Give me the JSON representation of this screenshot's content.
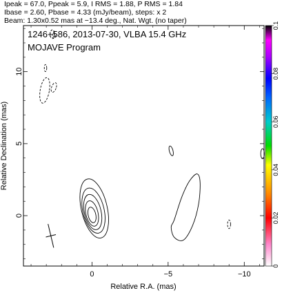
{
  "header": {
    "line1": "Ipeak = 67.0, Ppeak = 5.9, I RMS = 1.88, P RMS = 1.84",
    "line2": "Ibase = 2.60, Pbase = 4.33 (mJy/beam), steps: x 2",
    "line3": "Beam: 1.30x0.52 mas at −13.4 deg., Nat. Wgt. (no taper)"
  },
  "panel": {
    "title": "1246+586, 2013-07-30, VLBA 15.4 GHz",
    "subtitle": "MOJAVE Program"
  },
  "colorbar": {
    "ticks": [
      "0",
      "0.02",
      "0.04",
      "0.06",
      "0.08",
      "0.1"
    ],
    "range": [
      0,
      0.1
    ],
    "colors": [
      "#ffffff",
      "#ff88cc",
      "#ff0000",
      "#ff8800",
      "#ffff00",
      "#00dd00",
      "#00cccc",
      "#0066ff",
      "#0000ff",
      "#aa00ff",
      "#ff00ff",
      "#000000"
    ]
  },
  "chart_data": {
    "type": "contour",
    "xlabel": "Relative R.A. (mas)",
    "ylabel": "Relative Declination (mas)",
    "xlim": [
      4.5,
      -11.3
    ],
    "ylim": [
      -3.5,
      13.2
    ],
    "x_ticks": [
      "0",
      "−5",
      "−10"
    ],
    "x_tick_values": [
      0,
      -5,
      -10
    ],
    "y_ticks": [
      "0",
      "5",
      "10"
    ],
    "y_tick_values": [
      0,
      5,
      10
    ],
    "core_contours": [
      {
        "cx": 0.0,
        "cy": 0.05,
        "rx": 0.25,
        "ry": 0.55,
        "angle": -13
      },
      {
        "cx": 0.0,
        "cy": 0.15,
        "rx": 0.4,
        "ry": 0.9,
        "angle": -13
      },
      {
        "cx": -0.05,
        "cy": 0.25,
        "rx": 0.55,
        "ry": 1.25,
        "angle": -13
      },
      {
        "cx": -0.1,
        "cy": 0.35,
        "rx": 0.7,
        "ry": 1.6,
        "angle": -13
      },
      {
        "cx": -0.15,
        "cy": 0.5,
        "rx": 0.85,
        "ry": 2.1,
        "angle": -13
      }
    ],
    "jet_component": [
      [
        -5.4,
        -0.3
      ],
      [
        -5.9,
        1.3
      ],
      [
        -6.4,
        2.4
      ],
      [
        -6.9,
        2.9
      ],
      [
        -7.1,
        2.3
      ],
      [
        -7.0,
        0.8
      ],
      [
        -6.6,
        -0.7
      ],
      [
        -6.0,
        -1.7
      ],
      [
        -5.4,
        -1.5
      ],
      [
        -5.2,
        -0.8
      ]
    ],
    "small_blob": {
      "cx": -5.2,
      "cy": 4.5,
      "rx": 0.12,
      "ry": 0.35,
      "angle": -15
    },
    "right_edge_blob": {
      "cx": -11.2,
      "cy": 4.3,
      "rx": 0.12,
      "ry": 0.35
    },
    "negative_contours": [
      {
        "cx": 3.1,
        "cy": 8.7,
        "rx": 0.3,
        "ry": 0.9,
        "angle": 10
      },
      {
        "cx": 2.5,
        "cy": 8.9,
        "rx": 0.15,
        "ry": 0.35,
        "angle": 20
      },
      {
        "cx": 3.05,
        "cy": 10.25,
        "rx": 0.08,
        "ry": 0.25,
        "angle": 0
      },
      {
        "cx": -9.0,
        "cy": -0.6,
        "rx": 0.1,
        "ry": 0.3,
        "angle": 0
      },
      {
        "cx": 2.6,
        "cy": 12.6,
        "rx": 0.15,
        "ry": 0.3,
        "angle": 0
      },
      {
        "cx": 2.5,
        "cy": 12.5,
        "rx": 0.1,
        "ry": 0.2,
        "angle": 0
      }
    ],
    "beam_cross": {
      "x": 2.7,
      "y": -1.4,
      "major": 1.3,
      "minor": 0.52,
      "pa": -13.4
    }
  }
}
